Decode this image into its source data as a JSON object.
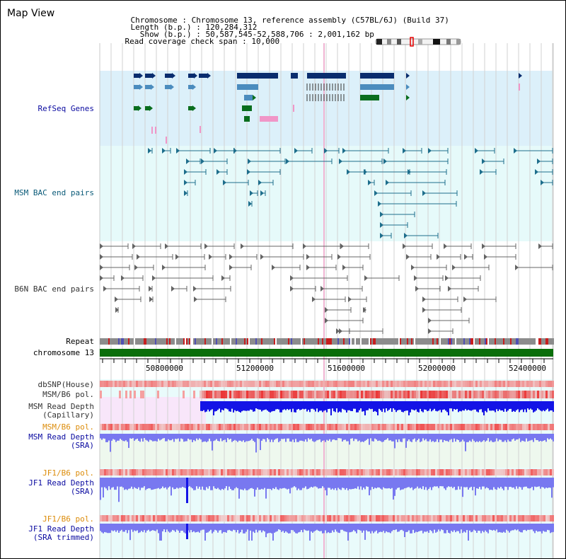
{
  "header": {
    "title": "Map View",
    "info": [
      {
        "key": "Chromosome",
        "sep": " : ",
        "value": "Chromosome 13, reference assembly (C57BL/6J) (Build 37)"
      },
      {
        "key": "Length (b.p.)",
        "sep": " : ",
        "value": "120,284,312"
      },
      {
        "key": "  Show (b.p.)",
        "sep": " : ",
        "value": "50,587,545-52,588,706 : 2,001,162 bp"
      },
      {
        "key": "Read coverage check span",
        "sep": " : ",
        "value": "10,000"
      }
    ]
  },
  "tracks": {
    "refseq": "RefSeq Genes",
    "msm_bac": "MSM BAC end pairs",
    "b6n_bac": "B6N BAC end pairs",
    "repeat": "Repeat",
    "chromosome": "chromosome 13",
    "dbsnp": "dbSNP(House)",
    "msm_b6_pol_1": "MSM/B6 pol.",
    "msm_read_depth_cap": "MSM Read Depth\n(Capillary)",
    "msm_b6_pol_2": "MSM/B6 pol.",
    "msm_read_depth_sra": "MSM Read Depth\n(SRA)",
    "jf1_b6_pol_1": "JF1/B6 pol.",
    "jf1_read_depth_sra": "JF1 Read Depth\n(SRA)",
    "jf1_b6_pol_2": "JF1/B6 pol.",
    "jf1_read_depth_trim": "JF1 Read Depth\n(SRA trimmed)"
  },
  "axis": {
    "ticks": [
      "50800000",
      "51200000",
      "51600000",
      "52000000",
      "52400000"
    ]
  },
  "colors": {
    "refseq_bg": "#dcf0fa",
    "msm_bg": "#e6fafa",
    "navy": "#0a2d6e",
    "steel": "#4b8cbe",
    "green": "#0a6e1e",
    "pink": "#f096c8",
    "teal": "#1e6e8c",
    "gray": "#646464",
    "red_pol": "#e61e1e",
    "blue_depth": "#1414e6",
    "violet_depth": "#7878f0",
    "chrom_green": "#0a6e0a",
    "label_blue": "#0a0aa0",
    "label_teal": "#0a5a78",
    "label_orange": "#dc8c0a"
  }
}
